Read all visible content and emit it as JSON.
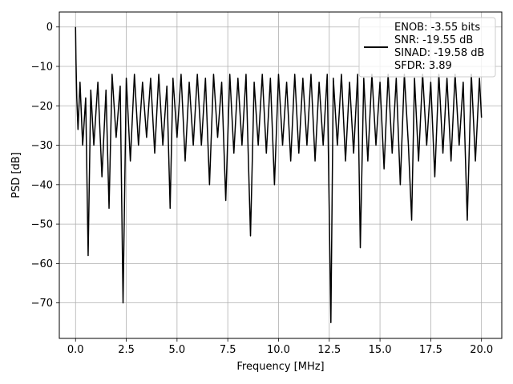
{
  "chart_data": {
    "type": "line",
    "title": "",
    "xlabel": "Frequency [MHz]",
    "ylabel": "PSD [dB]",
    "xlim": [
      -0.8,
      21.0
    ],
    "ylim": [
      -79.0,
      3.8
    ],
    "grid": true,
    "line_color": "#000000",
    "legend_placement": "top-right",
    "legend_lines": [
      "ENOB: -3.55 bits",
      "SNR: -19.55 dB",
      "SINAD: -19.58 dB",
      "SFDR: 3.89"
    ],
    "xticks": [
      {
        "value": 0.0,
        "label": "0.0"
      },
      {
        "value": 2.5,
        "label": "2.5"
      },
      {
        "value": 5.0,
        "label": "5.0"
      },
      {
        "value": 7.5,
        "label": "7.5"
      },
      {
        "value": 10.0,
        "label": "10.0"
      },
      {
        "value": 12.5,
        "label": "12.5"
      },
      {
        "value": 15.0,
        "label": "15.0"
      },
      {
        "value": 17.5,
        "label": "17.5"
      },
      {
        "value": 20.0,
        "label": "20.0"
      }
    ],
    "yticks": [
      {
        "value": 0,
        "label": "0"
      },
      {
        "value": -10,
        "label": "−10"
      },
      {
        "value": -20,
        "label": "−20"
      },
      {
        "value": -30,
        "label": "−30"
      },
      {
        "value": -40,
        "label": "−40"
      },
      {
        "value": -50,
        "label": "−50"
      },
      {
        "value": -60,
        "label": "−60"
      },
      {
        "value": -70,
        "label": "−70"
      }
    ],
    "x": [
      0.0,
      0.02,
      0.06,
      0.12,
      0.22,
      0.35,
      0.5,
      0.62,
      0.75,
      0.9,
      1.1,
      1.3,
      1.5,
      1.65,
      1.8,
      2.0,
      2.2,
      2.34,
      2.5,
      2.7,
      2.9,
      3.1,
      3.3,
      3.5,
      3.7,
      3.9,
      4.1,
      4.3,
      4.5,
      4.66,
      4.8,
      5.0,
      5.2,
      5.4,
      5.6,
      5.8,
      6.0,
      6.2,
      6.4,
      6.6,
      6.8,
      7.0,
      7.2,
      7.4,
      7.6,
      7.8,
      8.0,
      8.2,
      8.4,
      8.62,
      8.8,
      9.0,
      9.2,
      9.4,
      9.6,
      9.8,
      10.0,
      10.2,
      10.4,
      10.6,
      10.8,
      11.0,
      11.2,
      11.4,
      11.6,
      11.8,
      12.0,
      12.2,
      12.4,
      12.58,
      12.7,
      12.9,
      13.1,
      13.3,
      13.5,
      13.7,
      13.9,
      14.03,
      14.2,
      14.4,
      14.6,
      14.8,
      15.0,
      15.2,
      15.4,
      15.6,
      15.8,
      16.0,
      16.2,
      16.4,
      16.56,
      16.7,
      16.9,
      17.1,
      17.3,
      17.5,
      17.7,
      17.9,
      18.1,
      18.3,
      18.5,
      18.7,
      18.9,
      19.1,
      19.3,
      19.5,
      19.7,
      19.9,
      20.0
    ],
    "y": [
      0.0,
      -8.0,
      -18.0,
      -26.0,
      -14.0,
      -30.0,
      -18.0,
      -58.0,
      -16.0,
      -30.0,
      -14.0,
      -38.0,
      -16.0,
      -46.0,
      -12.0,
      -28.0,
      -15.0,
      -70.0,
      -13.0,
      -34.0,
      -12.0,
      -30.0,
      -14.0,
      -28.0,
      -13.0,
      -32.0,
      -12.0,
      -30.0,
      -15.0,
      -46.0,
      -13.0,
      -28.0,
      -12.0,
      -34.0,
      -14.0,
      -30.0,
      -12.0,
      -30.0,
      -13.0,
      -40.0,
      -12.0,
      -28.0,
      -14.0,
      -44.0,
      -12.0,
      -32.0,
      -13.0,
      -30.0,
      -12.0,
      -53.0,
      -14.0,
      -30.0,
      -12.0,
      -32.0,
      -13.0,
      -40.0,
      -12.0,
      -30.0,
      -14.0,
      -34.0,
      -12.0,
      -32.0,
      -13.0,
      -30.0,
      -12.0,
      -34.0,
      -14.0,
      -30.0,
      -12.0,
      -75.0,
      -13.0,
      -30.0,
      -12.0,
      -34.0,
      -14.0,
      -32.0,
      -12.0,
      -56.0,
      -13.0,
      -34.0,
      -12.0,
      -30.0,
      -14.0,
      -36.0,
      -12.0,
      -32.0,
      -13.0,
      -40.0,
      -12.0,
      -30.0,
      -49.0,
      -13.0,
      -34.0,
      -12.0,
      -30.0,
      -14.0,
      -38.0,
      -12.0,
      -32.0,
      -13.0,
      -34.0,
      -12.0,
      -30.0,
      -14.0,
      -49.0,
      -12.0,
      -34.0,
      -13.0,
      -23.0
    ]
  }
}
